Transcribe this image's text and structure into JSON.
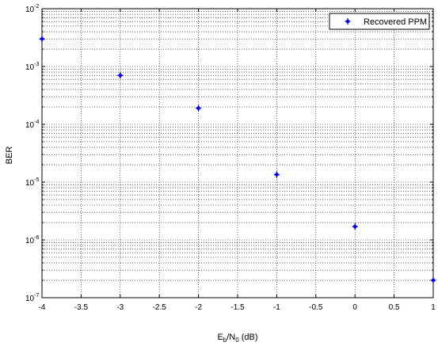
{
  "chart_data": {
    "type": "scatter",
    "title": "",
    "xlabel": {
      "main": "E",
      "sub1": "b",
      "mid": "/N",
      "sub2": "0",
      "tail": " (dB)"
    },
    "ylabel": "BER",
    "xlim": [
      -4,
      1
    ],
    "ylim": [
      1e-07,
      0.01
    ],
    "yscale": "log",
    "grid": true,
    "grid_minor": true,
    "legend_position": "top-right",
    "x_ticks": [
      {
        "v": -4,
        "label": "-4"
      },
      {
        "v": -3.5,
        "label": "-3.5"
      },
      {
        "v": -3,
        "label": "-3"
      },
      {
        "v": -2.5,
        "label": "-2.5"
      },
      {
        "v": -2,
        "label": "-2"
      },
      {
        "v": -1.5,
        "label": "-1.5"
      },
      {
        "v": -1,
        "label": "-1"
      },
      {
        "v": -0.5,
        "label": "-0.5"
      },
      {
        "v": 0,
        "label": "0"
      },
      {
        "v": 0.5,
        "label": "0.5"
      },
      {
        "v": 1,
        "label": "1"
      }
    ],
    "y_ticks": [
      {
        "exp": -2,
        "base": "10",
        "sup": "-2"
      },
      {
        "exp": -3,
        "base": "10",
        "sup": "-3"
      },
      {
        "exp": -4,
        "base": "10",
        "sup": "-4"
      },
      {
        "exp": -5,
        "base": "10",
        "sup": "-5"
      },
      {
        "exp": -6,
        "base": "10",
        "sup": "-6"
      },
      {
        "exp": -7,
        "base": "10",
        "sup": "-7"
      }
    ],
    "series": [
      {
        "name": "Recovered PPM",
        "color": "#0000ff",
        "marker": "star",
        "x": [
          -4,
          -3,
          -2,
          -1,
          0,
          1
        ],
        "y": [
          0.003,
          0.0007,
          0.00019,
          1.35e-05,
          1.7e-06,
          2e-07
        ]
      }
    ]
  }
}
